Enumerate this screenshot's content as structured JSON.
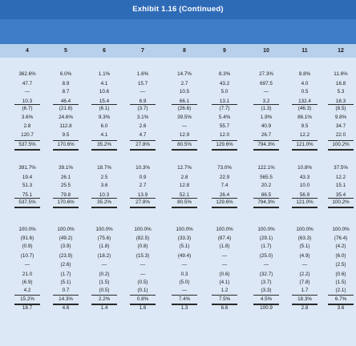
{
  "title": "Exhibit 1.16 (Continued)",
  "columns": [
    "4",
    "5",
    "6",
    "7",
    "8",
    "9",
    "10",
    "11",
    "12"
  ],
  "sections": [
    {
      "rows": [
        [
          "362.6%",
          "6.0%",
          "1.1%",
          "1.6%",
          "14.7%",
          "8.3%",
          "27.3%",
          "8.8%",
          "11.6%"
        ],
        [
          "47.7",
          "8.9",
          "4.1",
          "15.7",
          "2.7",
          "43.2",
          "697.5",
          "4.0",
          "16.8"
        ],
        [
          "—",
          "8.7",
          "10.6",
          "—",
          "10.5",
          "5.0",
          "—",
          "0.5",
          "5.3"
        ],
        [
          "10.3",
          "46.4",
          "15.4",
          "6.9",
          "66.1",
          "13.1",
          "3.2",
          "132.4",
          "18.3"
        ],
        [
          "(6.7)",
          "(21.8)",
          "(6.1)",
          "(3.7)",
          "(26.6)",
          "(7.7)",
          "(1.3)",
          "(46.3)",
          "(8.5)"
        ],
        [
          "3.6%",
          "24.6%",
          "9.3%",
          "3.1%",
          "39.5%",
          "5.4%",
          "1.9%",
          "86.1%",
          "9.8%"
        ],
        [
          "2.8",
          "112.8",
          "6.0",
          "2.6",
          "—",
          "55.7",
          "40.9",
          "9.5",
          "34.7"
        ],
        [
          "120.7",
          "9.5",
          "4.1",
          "4.7",
          "12.9",
          "12.0",
          "26.7",
          "12.2",
          "22.0"
        ],
        [
          "537.5%",
          "170.6%",
          "35.2%",
          "27.8%",
          "80.5%",
          "129.6%",
          "794.3%",
          "121.0%",
          "100.2%"
        ]
      ]
    },
    {
      "rows": [
        [
          "391.7%",
          "39.1%",
          "18.7%",
          "10.3%",
          "12.7%",
          "73.0%",
          "122.1%",
          "10.8%",
          "37.5%"
        ],
        [
          "19.4",
          "26.1",
          "2.5",
          "0.9",
          "2.8",
          "22.9",
          "565.5",
          "43.3",
          "12.2"
        ],
        [
          "51.3",
          "25.5",
          "3.6",
          "2.7",
          "12.8",
          "7.4",
          "20.2",
          "10.0",
          "15.1"
        ],
        [
          "75.1",
          "79.8",
          "10.3",
          "13.9",
          "52.1",
          "26.4",
          "86.5",
          "56.9",
          "35.4"
        ],
        [
          "537.5%",
          "170.6%",
          "35.2%",
          "27.8%",
          "80.5%",
          "129.6%",
          "794.3%",
          "121.0%",
          "100.2%"
        ]
      ]
    },
    {
      "rows": [
        [
          "100.0%",
          "100.0%",
          "100.0%",
          "100.0%",
          "100.0%",
          "100.0%",
          "100.0%",
          "100.0%",
          "100.0%"
        ],
        [
          "(91.6)",
          "(49.2)",
          "(75.6)",
          "(82.5)",
          "(33.3)",
          "(87.4)",
          "(29.1)",
          "(63.3)",
          "(76.4)"
        ],
        [
          "(0.9)",
          "(3.9)",
          "(1.8)",
          "(0.8)",
          "(5.1)",
          "(1.8)",
          "(1.7)",
          "(5.1)",
          "(4.2)"
        ],
        [
          "(10.7)",
          "(23.9)",
          "(18.2)",
          "(15.3)",
          "(49.4)",
          "—",
          "(25.0)",
          "(4.9)",
          "(6.0)"
        ],
        [
          "—",
          "(2.6)",
          "—",
          "—",
          "—",
          "—",
          "—",
          "—",
          "(2.5)"
        ],
        [
          "21.0",
          "(1.7)",
          "(0.2)",
          "—",
          "0.3",
          "(0.6)",
          "(32.7)",
          "(2.2)",
          "(0.6)"
        ],
        [
          "(6.9)",
          "(5.1)",
          "(1.5)",
          "(0.5)",
          "(5.0)",
          "(4.1)",
          "(3.7)",
          "(7.8)",
          "(1.5)"
        ],
        [
          "4.2",
          "0.7",
          "(0.5)",
          "(0.1)",
          "—",
          "1.2",
          "(3.3)",
          "1.7",
          "(2.1)"
        ],
        [
          "15.2%",
          "14.3%",
          "2.2%",
          "0.8%",
          "7.4%",
          "7.5%",
          "4.5%",
          "18.3%",
          "6.7%"
        ],
        [
          "18.7",
          "4.6",
          "1.4",
          "1.6",
          "1.3",
          "6.6",
          "100.9",
          "2.8",
          "3.6"
        ]
      ]
    }
  ]
}
